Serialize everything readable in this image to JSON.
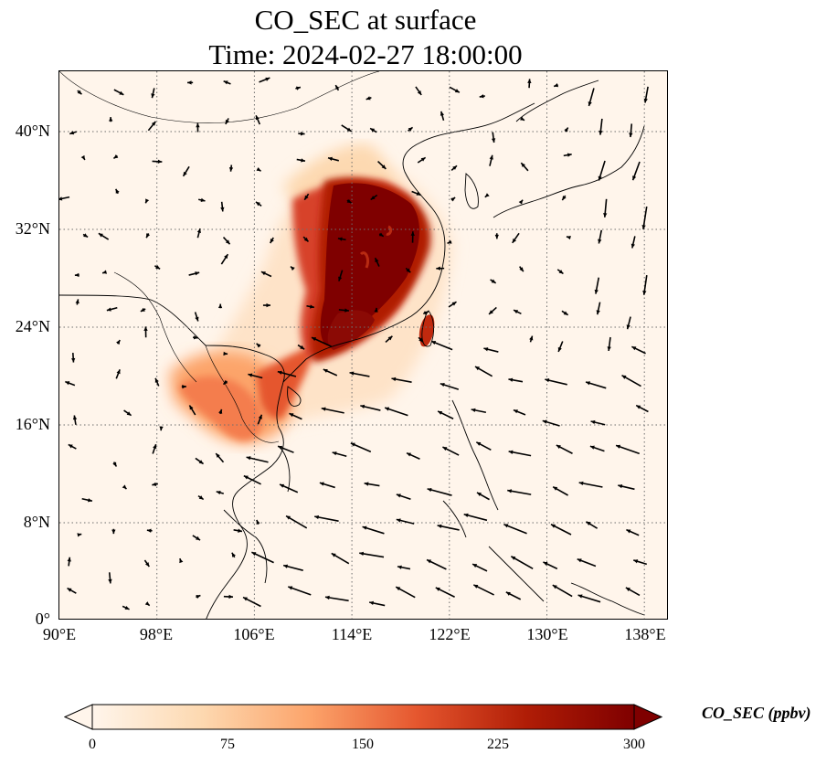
{
  "title": {
    "line1": "CO_SEC at surface",
    "line2": "Time: 2024-02-27 18:00:00"
  },
  "axes": {
    "lat_labels": [
      "0°",
      "8°N",
      "16°N",
      "24°N",
      "32°N",
      "40°N"
    ],
    "lon_labels": [
      "90°E",
      "98°E",
      "106°E",
      "114°E",
      "122°E",
      "130°E",
      "138°E"
    ]
  },
  "colorbar": {
    "label": "CO_SEC (ppbv)",
    "ticks": [
      "0",
      "75",
      "150",
      "225",
      "300"
    ],
    "colormap": [
      "#fff5eb",
      "#fdd9b1",
      "#fca46b",
      "#e5562e",
      "#b01d06",
      "#7f0000"
    ]
  },
  "colors": {
    "land_outline": "#000000",
    "grid": "#6e6e6e",
    "wind_arrow": "#000000",
    "background": "#fff5eb"
  }
}
